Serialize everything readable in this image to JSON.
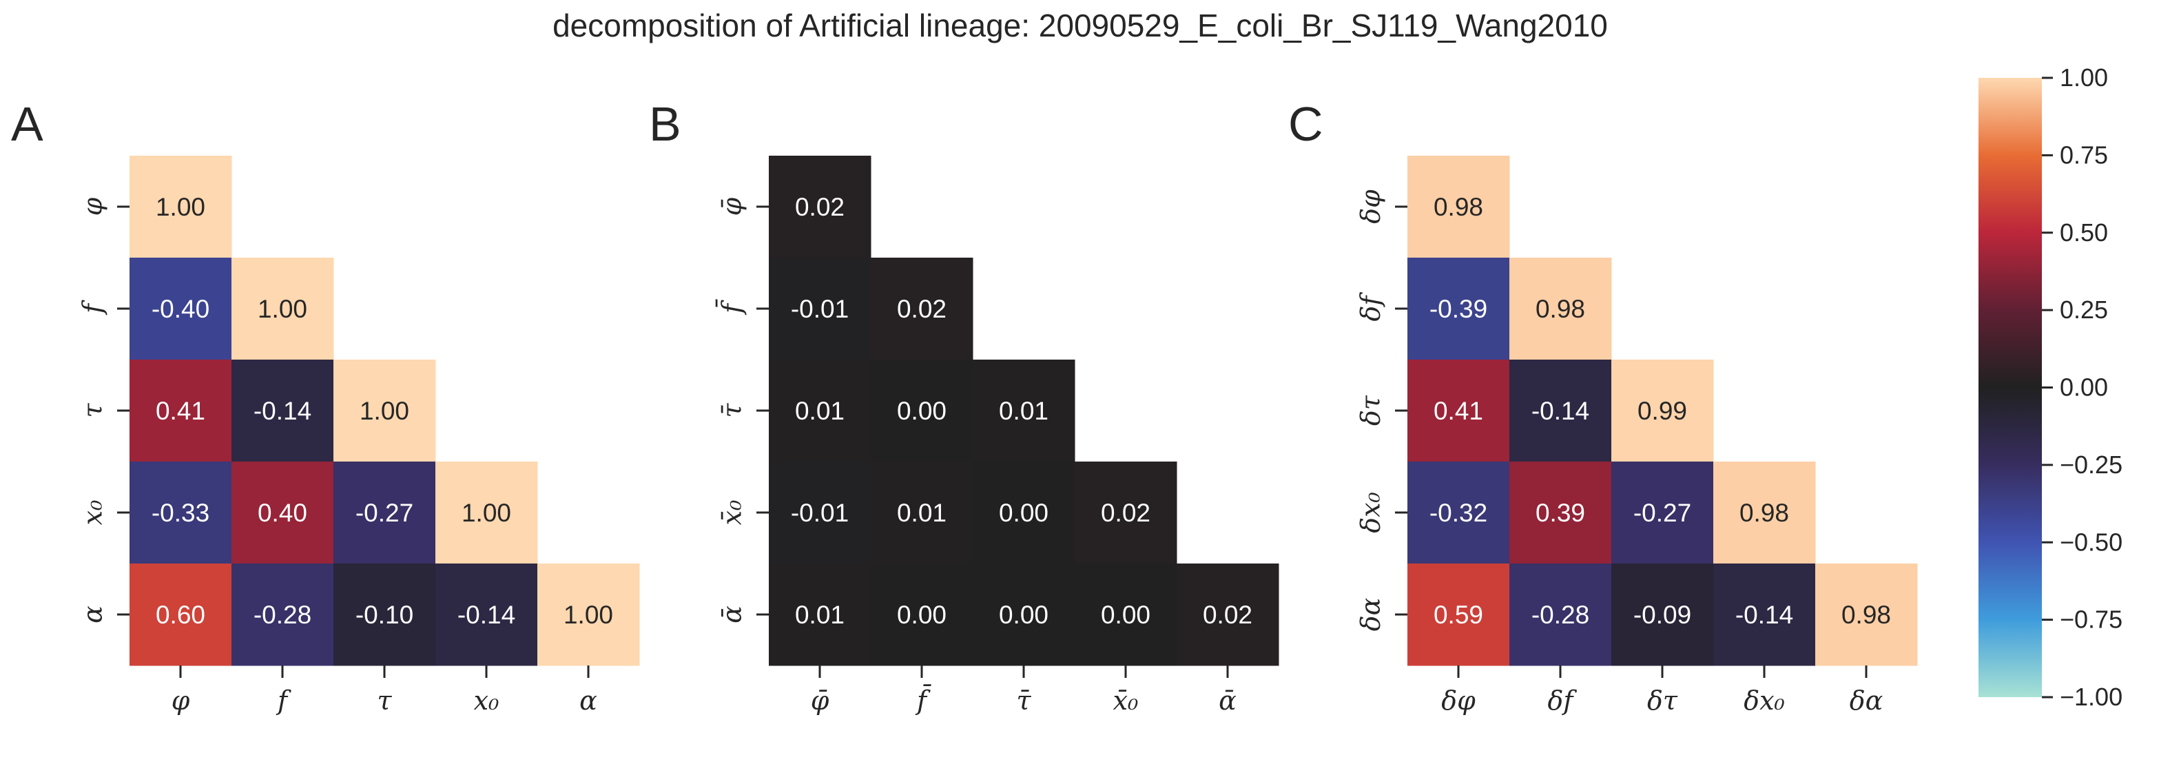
{
  "chart_data": {
    "type": "heatmap",
    "title": "decomposition of Artificial lineage: 20090529_E_coli_Br_SJ119_Wang2010",
    "panels": [
      {
        "letter": "A",
        "labels": [
          "φ",
          "f",
          "τ",
          "x₀",
          "α"
        ],
        "lower_triangle": [
          [
            1.0
          ],
          [
            -0.4,
            1.0
          ],
          [
            0.41,
            -0.14,
            1.0
          ],
          [
            -0.33,
            0.4,
            -0.27,
            1.0
          ],
          [
            0.6,
            -0.28,
            -0.1,
            -0.14,
            1.0
          ]
        ]
      },
      {
        "letter": "B",
        "labels": [
          "φ̄",
          "f̄",
          "τ̄",
          "x̄₀",
          "ᾱ"
        ],
        "lower_triangle": [
          [
            0.02
          ],
          [
            -0.01,
            0.02
          ],
          [
            0.01,
            -0.0,
            0.01
          ],
          [
            -0.01,
            0.01,
            -0.0,
            0.02
          ],
          [
            0.01,
            -0.0,
            -0.0,
            -0.0,
            0.02
          ]
        ]
      },
      {
        "letter": "C",
        "labels": [
          "δφ",
          "δf",
          "δτ",
          "δx₀",
          "δα"
        ],
        "lower_triangle": [
          [
            0.98
          ],
          [
            -0.39,
            0.98
          ],
          [
            0.41,
            -0.14,
            0.99
          ],
          [
            -0.32,
            0.39,
            -0.27,
            0.98
          ],
          [
            0.59,
            -0.28,
            -0.09,
            -0.14,
            0.98
          ]
        ]
      }
    ],
    "colorbar": {
      "ticks": [
        "1.00",
        "0.75",
        "0.50",
        "0.25",
        "0.00",
        "−0.25",
        "−0.50",
        "−0.75",
        "−1.00"
      ],
      "vmin": -1,
      "vmax": 1,
      "colormap": "icefire"
    }
  }
}
